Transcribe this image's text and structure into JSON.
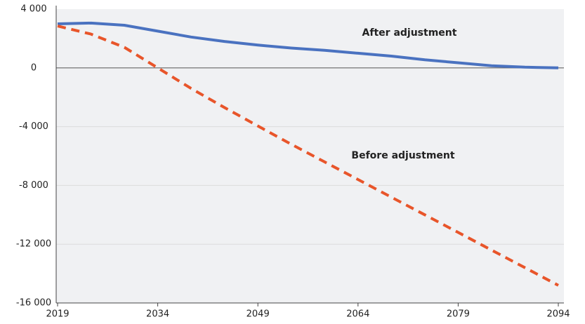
{
  "chart_data": {
    "type": "line",
    "x": [
      2019,
      2024,
      2029,
      2034,
      2039,
      2044,
      2049,
      2054,
      2059,
      2064,
      2069,
      2074,
      2079,
      2084,
      2089,
      2094
    ],
    "series": [
      {
        "name": "After adjustment",
        "color": "#4a72c0",
        "dash": false,
        "values": [
          3000,
          3050,
          2900,
          2500,
          2100,
          1800,
          1550,
          1350,
          1200,
          1000,
          800,
          550,
          350,
          150,
          50,
          0
        ]
      },
      {
        "name": "Before adjustment",
        "color": "#e8552a",
        "dash": true,
        "values": [
          2850,
          2300,
          1400,
          0,
          -1400,
          -2700,
          -3950,
          -5200,
          -6400,
          -7600,
          -8800,
          -10000,
          -11200,
          -12400,
          -13600,
          -14800
        ]
      }
    ],
    "xlim": [
      2019,
      2094
    ],
    "xticks": [
      2019,
      2034,
      2049,
      2064,
      2079,
      2094
    ],
    "ylim": [
      -16000,
      4000
    ],
    "yticks": [
      {
        "value": -16000,
        "label": "-16 000"
      },
      {
        "value": -12000,
        "label": "-12 000"
      },
      {
        "value": -8000,
        "label": "-8 000"
      },
      {
        "value": -4000,
        "label": "-4 000"
      },
      0,
      {
        "value": 4000,
        "label": "4 000"
      }
    ],
    "grid": true
  }
}
